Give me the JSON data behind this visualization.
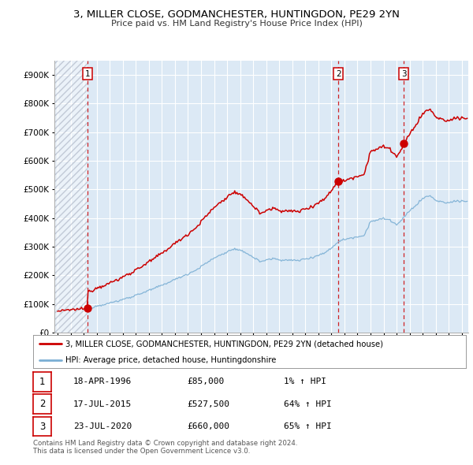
{
  "title": "3, MILLER CLOSE, GODMANCHESTER, HUNTINGDON, PE29 2YN",
  "subtitle": "Price paid vs. HM Land Registry's House Price Index (HPI)",
  "plot_bg_color": "#dce9f5",
  "grid_color": "#ffffff",
  "red_color": "#cc0000",
  "blue_color": "#7bafd4",
  "sale1_year": 1996.29,
  "sale2_year": 2015.54,
  "sale3_year": 2020.55,
  "sale1_price": 85000,
  "sale2_price": 527500,
  "sale3_price": 660000,
  "xmin": 1993.75,
  "xmax": 2025.5,
  "ymin": 0,
  "ymax": 950000,
  "yticks": [
    0,
    100000,
    200000,
    300000,
    400000,
    500000,
    600000,
    700000,
    800000,
    900000
  ],
  "legend_line1": "3, MILLER CLOSE, GODMANCHESTER, HUNTINGDON, PE29 2YN (detached house)",
  "legend_line2": "HPI: Average price, detached house, Huntingdonshire",
  "table_rows": [
    {
      "num": "1",
      "date": "18-APR-1996",
      "price": "£85,000",
      "change": "1% ↑ HPI"
    },
    {
      "num": "2",
      "date": "17-JUL-2015",
      "price": "£527,500",
      "change": "64% ↑ HPI"
    },
    {
      "num": "3",
      "date": "23-JUL-2020",
      "price": "£660,000",
      "change": "65% ↑ HPI"
    }
  ],
  "footnote1": "Contains HM Land Registry data © Crown copyright and database right 2024.",
  "footnote2": "This data is licensed under the Open Government Licence v3.0."
}
